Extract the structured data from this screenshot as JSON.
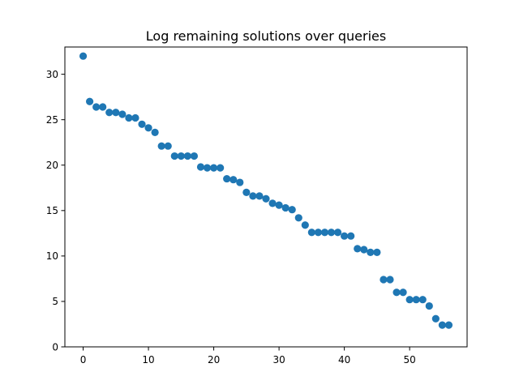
{
  "chart_data": {
    "type": "scatter",
    "title": "Log remaining solutions over queries",
    "xlabel": "",
    "ylabel": "",
    "xlim": [
      -2.8,
      58.8
    ],
    "ylim": [
      0,
      33
    ],
    "xticks": [
      0,
      10,
      20,
      30,
      40,
      50
    ],
    "yticks": [
      0,
      5,
      10,
      15,
      20,
      25,
      30
    ],
    "grid": false,
    "marker_color": "#1f77b4",
    "series": [
      {
        "x": [
          0,
          1,
          2,
          3,
          4,
          5,
          6,
          7,
          8,
          9,
          10,
          11,
          12,
          13,
          14,
          15,
          16,
          17,
          18,
          19,
          20,
          21,
          22,
          23,
          24,
          25,
          26,
          27,
          28,
          29,
          30,
          31,
          32,
          33,
          34,
          35,
          36,
          37,
          38,
          39,
          40,
          41,
          42,
          43,
          44,
          45,
          46,
          47,
          48,
          49,
          50,
          51,
          52,
          53,
          54,
          55,
          56
        ],
        "y": [
          32.0,
          27.0,
          26.4,
          26.4,
          25.8,
          25.8,
          25.6,
          25.2,
          25.2,
          24.5,
          24.1,
          23.6,
          22.1,
          22.1,
          21.0,
          21.0,
          21.0,
          21.0,
          19.8,
          19.7,
          19.7,
          19.7,
          18.5,
          18.4,
          18.1,
          17.0,
          16.6,
          16.6,
          16.3,
          15.8,
          15.6,
          15.3,
          15.1,
          14.2,
          13.4,
          12.6,
          12.6,
          12.6,
          12.6,
          12.6,
          12.2,
          12.2,
          10.8,
          10.7,
          10.4,
          10.4,
          7.4,
          7.4,
          6.0,
          6.0,
          5.2,
          5.2,
          5.2,
          4.5,
          3.1,
          2.4,
          2.4
        ]
      }
    ]
  }
}
